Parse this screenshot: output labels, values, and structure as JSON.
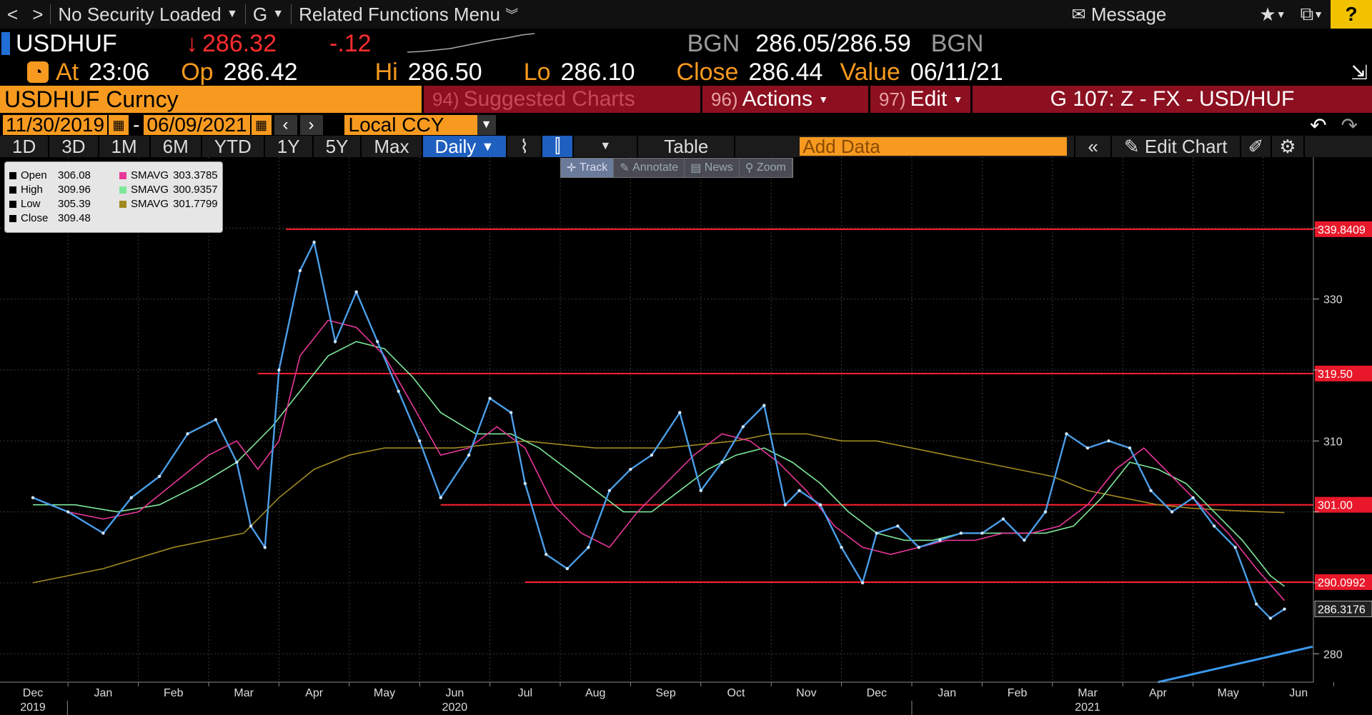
{
  "topbar": {
    "back": "<",
    "forward": ">",
    "security": "No Security Loaded",
    "g": "G",
    "related": "Related Functions Menu",
    "message": "Message",
    "help": "?"
  },
  "ticker": {
    "symbol": "USDHUF",
    "last": "286.32",
    "change": "-.12",
    "bid_src": "BGN",
    "bid": "286.05",
    "ask": "286.59",
    "ask_src": "BGN"
  },
  "quote": {
    "at_label": "At",
    "at": "23:06",
    "op_label": "Op",
    "op": "286.42",
    "hi_label": "Hi",
    "hi": "286.50",
    "lo_label": "Lo",
    "lo": "286.10",
    "close_label": "Close",
    "close": "286.44",
    "value_label": "Value",
    "value": "06/11/21"
  },
  "menu": {
    "security_name": "USDHUF Curncy",
    "suggested_num": "94)",
    "suggested": "Suggested Charts",
    "actions_num": "96)",
    "actions": "Actions",
    "edit_num": "97)",
    "edit": "Edit",
    "chart_id": "G 107: Z - FX - USD/HUF"
  },
  "dates": {
    "start": "11/30/2019",
    "dash": "-",
    "end": "06/09/2021",
    "ccy": "Local CCY"
  },
  "toolbar": {
    "periods": [
      "1D",
      "3D",
      "1M",
      "6M",
      "YTD",
      "1Y",
      "5Y",
      "Max"
    ],
    "freq": "Daily",
    "table": "Table",
    "add_data_placeholder": "Add Data",
    "edit_chart": "Edit Chart"
  },
  "tools": {
    "track": "Track",
    "annotate": "Annotate",
    "news": "News",
    "zoom": "Zoom"
  },
  "legend": {
    "open_label": "Open",
    "open": "306.08",
    "high_label": "High",
    "high": "309.96",
    "low_label": "Low",
    "low": "305.39",
    "close_label": "Close",
    "close": "309.48",
    "sma1_label": "SMAVG",
    "sma1": "303.3785",
    "sma1_color": "#e8379a",
    "sma2_label": "SMAVG",
    "sma2": "300.9357",
    "sma2_color": "#7ee89a",
    "sma3_label": "SMAVG",
    "sma3": "301.7799",
    "sma3_color": "#a08a20"
  },
  "chart_data": {
    "type": "line",
    "title": "USDHUF Curncy",
    "ylim": [
      276,
      350
    ],
    "ytick_values": [
      280,
      290,
      300,
      310,
      320,
      330,
      340
    ],
    "ytick_labels": [
      "280",
      "",
      "",
      "310",
      "",
      "330",
      ""
    ],
    "grid": true,
    "x_month_labels": [
      "Dec",
      "Jan",
      "Feb",
      "Mar",
      "Apr",
      "May",
      "Jun",
      "Jul",
      "Aug",
      "Sep",
      "Oct",
      "Nov",
      "Dec",
      "Jan",
      "Feb",
      "Mar",
      "Apr",
      "May",
      "Jun"
    ],
    "x_year_labels": [
      {
        "label": "2019",
        "month_index": 0
      },
      {
        "label": "2020",
        "month_index": 6
      },
      {
        "label": "2021",
        "month_index": 15
      }
    ],
    "levels": [
      {
        "value": 339.8409,
        "label": "339.8409"
      },
      {
        "value": 319.5,
        "label": "319.50"
      },
      {
        "value": 301.0,
        "label": "301.00"
      },
      {
        "value": 290.0992,
        "label": "290.0992"
      }
    ],
    "level_start_month": [
      3.6,
      3.2,
      5.8,
      7.0
    ],
    "last_price_label": "286.3176",
    "last_price": 286.3176,
    "trend_line": {
      "start": [
        16.0,
        276.0
      ],
      "end": [
        18.2,
        281.0
      ]
    },
    "series": [
      {
        "name": "Close",
        "color": "#4a9ee8",
        "x": [
          0.0,
          0.5,
          1.0,
          1.4,
          1.8,
          2.2,
          2.6,
          2.9,
          3.1,
          3.3,
          3.5,
          3.8,
          4.0,
          4.3,
          4.6,
          4.9,
          5.2,
          5.5,
          5.8,
          6.2,
          6.5,
          6.8,
          7.0,
          7.3,
          7.6,
          7.9,
          8.2,
          8.5,
          8.8,
          9.2,
          9.5,
          9.8,
          10.1,
          10.4,
          10.7,
          10.9,
          11.2,
          11.5,
          11.8,
          12.0,
          12.3,
          12.6,
          12.9,
          13.2,
          13.5,
          13.8,
          14.1,
          14.4,
          14.7,
          15.0,
          15.3,
          15.6,
          15.9,
          16.2,
          16.5,
          16.8,
          17.1,
          17.4,
          17.6,
          17.8
        ],
        "y": [
          302,
          300,
          297,
          302,
          305,
          311,
          313,
          307,
          298,
          295,
          320,
          334,
          338,
          324,
          331,
          324,
          317,
          310,
          302,
          308,
          316,
          314,
          304,
          294,
          292,
          295,
          303,
          306,
          308,
          314,
          303,
          307,
          312,
          315,
          301,
          303,
          301,
          295,
          290,
          297,
          298,
          295,
          296,
          297,
          297,
          299,
          296,
          300,
          311,
          309,
          310,
          309,
          303,
          300,
          302,
          298,
          295,
          287,
          285,
          286.3
        ]
      },
      {
        "name": "SMAVG",
        "color": "#e8379a",
        "x": [
          0.0,
          0.5,
          1.0,
          1.5,
          2.0,
          2.5,
          2.9,
          3.2,
          3.5,
          3.8,
          4.2,
          4.6,
          5.0,
          5.4,
          5.8,
          6.2,
          6.6,
          7.0,
          7.4,
          7.8,
          8.2,
          8.6,
          9.0,
          9.4,
          9.8,
          10.2,
          10.6,
          11.0,
          11.4,
          11.8,
          12.2,
          12.6,
          13.0,
          13.4,
          13.8,
          14.2,
          14.6,
          15.0,
          15.4,
          15.8,
          16.2,
          16.6,
          17.0,
          17.4,
          17.8
        ],
        "y": [
          302,
          300,
          299,
          300,
          304,
          308,
          310,
          306,
          310,
          322,
          327,
          326,
          322,
          315,
          308,
          309,
          312,
          309,
          301,
          297,
          295,
          300,
          304,
          308,
          311,
          310,
          307,
          303,
          298,
          295,
          294,
          295,
          296,
          296,
          297,
          297,
          298,
          301,
          306,
          309,
          305,
          301,
          297,
          292,
          287.5
        ]
      },
      {
        "name": "SMAVG",
        "color": "#7ee89a",
        "x": [
          0.0,
          0.6,
          1.2,
          1.8,
          2.4,
          2.9,
          3.4,
          3.8,
          4.2,
          4.6,
          5.0,
          5.4,
          5.8,
          6.3,
          6.8,
          7.2,
          7.6,
          8.0,
          8.4,
          8.8,
          9.2,
          9.6,
          10.0,
          10.4,
          10.8,
          11.2,
          11.6,
          12.0,
          12.4,
          12.8,
          13.2,
          13.6,
          14.0,
          14.4,
          14.8,
          15.2,
          15.6,
          16.0,
          16.4,
          16.8,
          17.2,
          17.6,
          17.8
        ],
        "y": [
          301,
          301,
          300,
          301,
          304,
          307,
          312,
          317,
          322,
          324,
          323,
          319,
          314,
          311,
          311,
          309,
          306,
          303,
          300,
          300,
          303,
          306,
          308,
          309,
          307,
          304,
          300,
          297,
          296,
          296,
          297,
          297,
          297,
          297,
          298,
          302,
          307,
          306,
          304,
          300,
          296,
          291,
          289.5
        ]
      },
      {
        "name": "SMAVG",
        "color": "#a08a20",
        "x": [
          0.0,
          1.0,
          2.0,
          3.0,
          3.5,
          4.0,
          4.5,
          5.0,
          5.5,
          6.0,
          7.0,
          8.0,
          9.0,
          10.0,
          10.5,
          11.0,
          11.5,
          12.0,
          12.5,
          13.0,
          13.5,
          14.0,
          14.5,
          15.0,
          15.5,
          16.0,
          16.5,
          17.0,
          17.5,
          17.8
        ],
        "y": [
          290,
          292,
          295,
          297,
          302,
          306,
          308,
          309,
          309,
          309,
          310,
          309,
          309,
          310,
          311,
          311,
          310,
          310,
          309,
          308,
          307,
          306,
          305,
          303,
          302,
          301,
          300.5,
          300.2,
          300,
          299.9
        ]
      }
    ]
  }
}
